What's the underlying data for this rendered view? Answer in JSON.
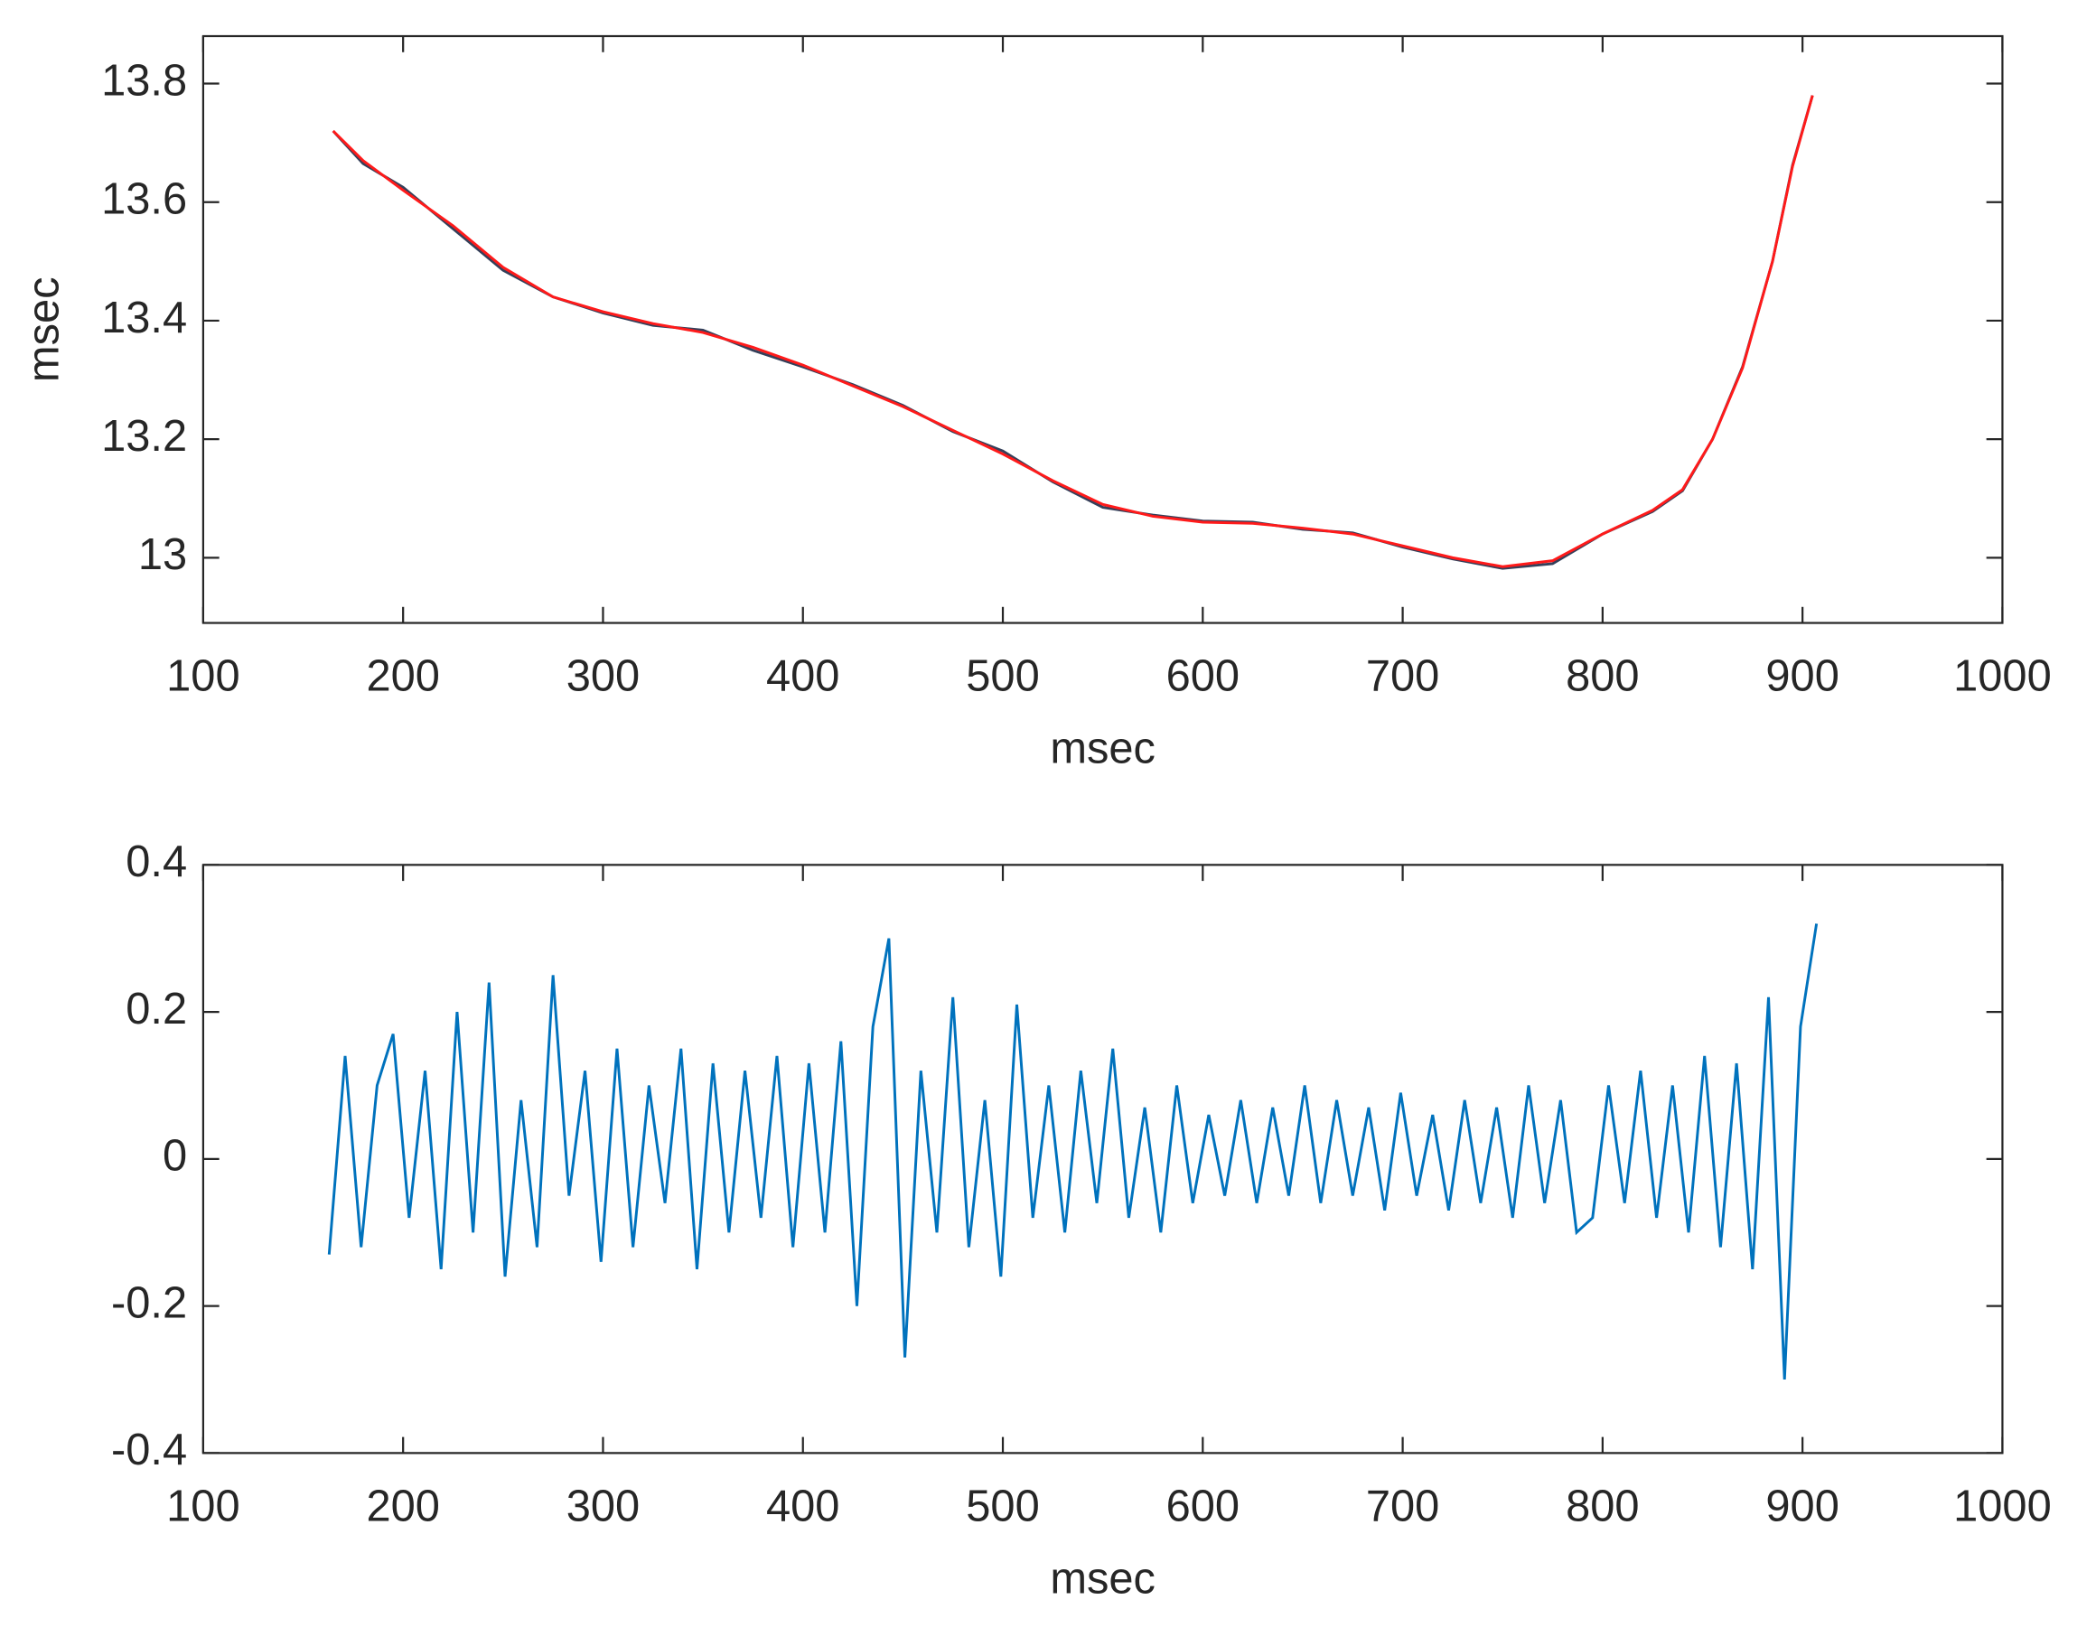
{
  "chart_data": [
    {
      "type": "line",
      "xlabel": "msec",
      "ylabel": "msec",
      "x": [
        165,
        180,
        200,
        225,
        250,
        275,
        300,
        325,
        350,
        375,
        400,
        425,
        450,
        475,
        500,
        525,
        550,
        575,
        600,
        625,
        650,
        675,
        700,
        725,
        750,
        775,
        800,
        825,
        840,
        855,
        870,
        885,
        895,
        905
      ],
      "series": [
        {
          "color": "#35405a",
          "values": [
            13.72,
            13.665,
            13.625,
            13.555,
            13.485,
            13.44,
            13.413,
            13.392,
            13.384,
            13.35,
            13.322,
            13.292,
            13.257,
            13.213,
            13.18,
            13.128,
            13.085,
            13.072,
            13.062,
            13.06,
            13.048,
            13.042,
            13.018,
            12.998,
            12.982,
            12.99,
            13.04,
            13.078,
            13.113,
            13.2,
            13.322,
            13.5,
            13.662,
            13.78
          ]
        },
        {
          "color": "#ff1a1a",
          "values": [
            13.72,
            13.67,
            13.62,
            13.56,
            13.49,
            13.44,
            13.415,
            13.395,
            13.38,
            13.355,
            13.325,
            13.29,
            13.255,
            13.215,
            13.175,
            13.13,
            13.09,
            13.07,
            13.06,
            13.058,
            13.05,
            13.04,
            13.02,
            13.0,
            12.985,
            12.995,
            13.04,
            13.08,
            13.115,
            13.2,
            13.32,
            13.5,
            13.66,
            13.78
          ]
        }
      ],
      "xlim": [
        100,
        1000
      ],
      "xticks": [
        100,
        200,
        300,
        400,
        500,
        600,
        700,
        800,
        900,
        1000
      ],
      "ylim": [
        12.89,
        13.88
      ],
      "yticks": [
        13,
        13.2,
        13.4,
        13.6,
        13.8
      ]
    },
    {
      "type": "line",
      "xlabel": "msec",
      "x": [
        163,
        171,
        179,
        187,
        195,
        203,
        211,
        219,
        227,
        235,
        243,
        251,
        259,
        267,
        275,
        283,
        291,
        299,
        307,
        315,
        323,
        331,
        339,
        347,
        355,
        363,
        371,
        379,
        387,
        395,
        403,
        411,
        419,
        427,
        435,
        443,
        451,
        459,
        467,
        475,
        483,
        491,
        499,
        507,
        515,
        523,
        531,
        539,
        547,
        555,
        563,
        571,
        579,
        587,
        595,
        603,
        611,
        619,
        627,
        635,
        643,
        651,
        659,
        667,
        675,
        683,
        691,
        699,
        707,
        715,
        723,
        731,
        739,
        747,
        755,
        763,
        771,
        779,
        787,
        795,
        803,
        811,
        819,
        827,
        835,
        843,
        851,
        859,
        867,
        875,
        883,
        891,
        899,
        907
      ],
      "series": [
        {
          "color": "#0072bd",
          "values": [
            -0.13,
            0.14,
            -0.12,
            0.1,
            0.17,
            -0.08,
            0.12,
            -0.15,
            0.2,
            -0.1,
            0.24,
            -0.16,
            0.08,
            -0.12,
            0.25,
            -0.05,
            0.12,
            -0.14,
            0.15,
            -0.12,
            0.1,
            -0.06,
            0.15,
            -0.15,
            0.13,
            -0.1,
            0.12,
            -0.08,
            0.14,
            -0.12,
            0.13,
            -0.1,
            0.16,
            -0.2,
            0.18,
            0.3,
            -0.27,
            0.12,
            -0.1,
            0.22,
            -0.12,
            0.08,
            -0.16,
            0.21,
            -0.08,
            0.1,
            -0.1,
            0.12,
            -0.06,
            0.15,
            -0.08,
            0.07,
            -0.1,
            0.1,
            -0.06,
            0.06,
            -0.05,
            0.08,
            -0.06,
            0.07,
            -0.05,
            0.1,
            -0.06,
            0.08,
            -0.05,
            0.07,
            -0.07,
            0.09,
            -0.05,
            0.06,
            -0.07,
            0.08,
            -0.06,
            0.07,
            -0.08,
            0.1,
            -0.06,
            0.08,
            -0.1,
            -0.08,
            0.1,
            -0.06,
            0.12,
            -0.08,
            0.1,
            -0.1,
            0.14,
            -0.12,
            0.13,
            -0.15,
            0.22,
            -0.3,
            0.18,
            0.32
          ]
        }
      ],
      "xlim": [
        100,
        1000
      ],
      "xticks": [
        100,
        200,
        300,
        400,
        500,
        600,
        700,
        800,
        900,
        1000
      ],
      "ylim": [
        -0.4,
        0.4
      ],
      "yticks": [
        -0.4,
        -0.2,
        0,
        0.2,
        0.4
      ]
    }
  ]
}
